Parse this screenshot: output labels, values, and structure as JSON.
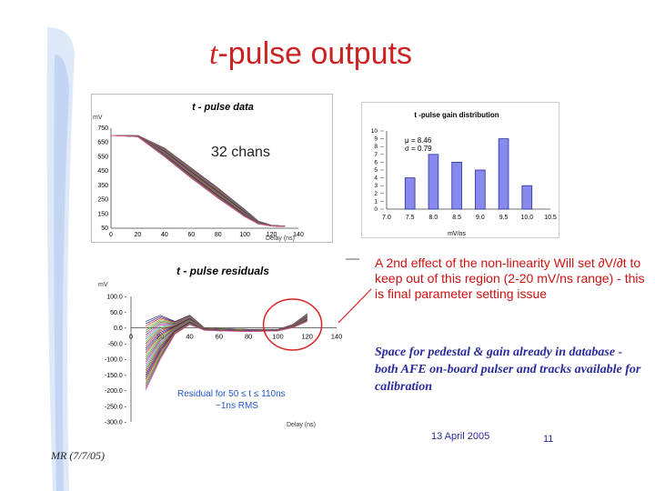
{
  "slide": {
    "title_italic": "t",
    "title_rest": "-pulse outputs",
    "annotation_red": "A 2nd effect of the non-linearity Will set ∂V/∂t to keep out of this region (2-20 mV/ns range) - this is final parameter setting issue",
    "annotation_blue": "Space for pedestal & gain already in database - both AFE on-board pulser and tracks available for calibration",
    "date": "13 April 2005",
    "page_number": "11",
    "author": "MR (7/7/05)",
    "colors": {
      "title": "#cc2222",
      "annotation": "#cc1111",
      "blue_text": "#2a2a9a",
      "bar": "#8888ee",
      "residual_label": "#2255cc"
    }
  },
  "chart_data": [
    {
      "type": "line",
      "title": "t - pulse data",
      "annotation": "32 chans",
      "xlabel": "Delay (ns)",
      "ylabel": "mV",
      "xlim": [
        0,
        140
      ],
      "ylim": [
        50,
        750
      ],
      "x_ticks": [
        "0",
        "20",
        "40",
        "60",
        "80",
        "100",
        "120",
        "140"
      ],
      "y_ticks": [
        "750",
        "650",
        "550",
        "450",
        "350",
        "250",
        "150",
        "50"
      ],
      "x": [
        0,
        20,
        40,
        60,
        80,
        100,
        110,
        120,
        130
      ],
      "series_envelope": {
        "upper": [
          700,
          700,
          610,
          470,
          330,
          180,
          100,
          70,
          65
        ],
        "lower": [
          700,
          690,
          550,
          400,
          260,
          130,
          80,
          65,
          62
        ]
      },
      "channel_count": 32
    },
    {
      "type": "bar",
      "title": "t -pulse gain distribution",
      "xlabel": "mV/ns",
      "x_ticks": [
        "7.0",
        "7.5",
        "8.0",
        "8.5",
        "9.0",
        "9.5",
        "10.0",
        "10.5"
      ],
      "y_ticks": [
        "0",
        "1",
        "2",
        "3",
        "4",
        "5",
        "6",
        "7",
        "8",
        "9",
        "10"
      ],
      "ylim": [
        0,
        10
      ],
      "xlim": [
        7.0,
        10.5
      ],
      "categories": [
        "7.5",
        "8.0",
        "8.5",
        "9.0",
        "9.5",
        "10.0"
      ],
      "values": [
        4,
        7,
        6,
        5,
        9,
        3
      ],
      "stats": [
        "μ = 8.46",
        "σ = 0.79"
      ]
    },
    {
      "type": "line",
      "title": "t - pulse residuals",
      "annotation_line1": "Residual for 50 ≤ t ≤ 110ns",
      "annotation_line2": "~1ns RMS",
      "xlabel": "Delay (ns)",
      "ylabel": "mV",
      "xlim": [
        0,
        140
      ],
      "ylim": [
        -300,
        100
      ],
      "x_ticks": [
        "0",
        "20",
        "40",
        "60",
        "80",
        "100",
        "120",
        "140"
      ],
      "y_ticks": [
        "100.0",
        "50.0",
        "0.0",
        "-50.0",
        "-100.0",
        "-150.0",
        "-200.0",
        "-250.0",
        "-300.0"
      ],
      "x": [
        10,
        20,
        30,
        40,
        50,
        60,
        80,
        100,
        110,
        120
      ],
      "series_envelope": {
        "upper": [
          20,
          40,
          20,
          40,
          0,
          -2,
          -5,
          -5,
          10,
          45
        ],
        "lower": [
          -200,
          -100,
          -20,
          10,
          -8,
          -10,
          -12,
          -10,
          0,
          20
        ]
      }
    }
  ]
}
